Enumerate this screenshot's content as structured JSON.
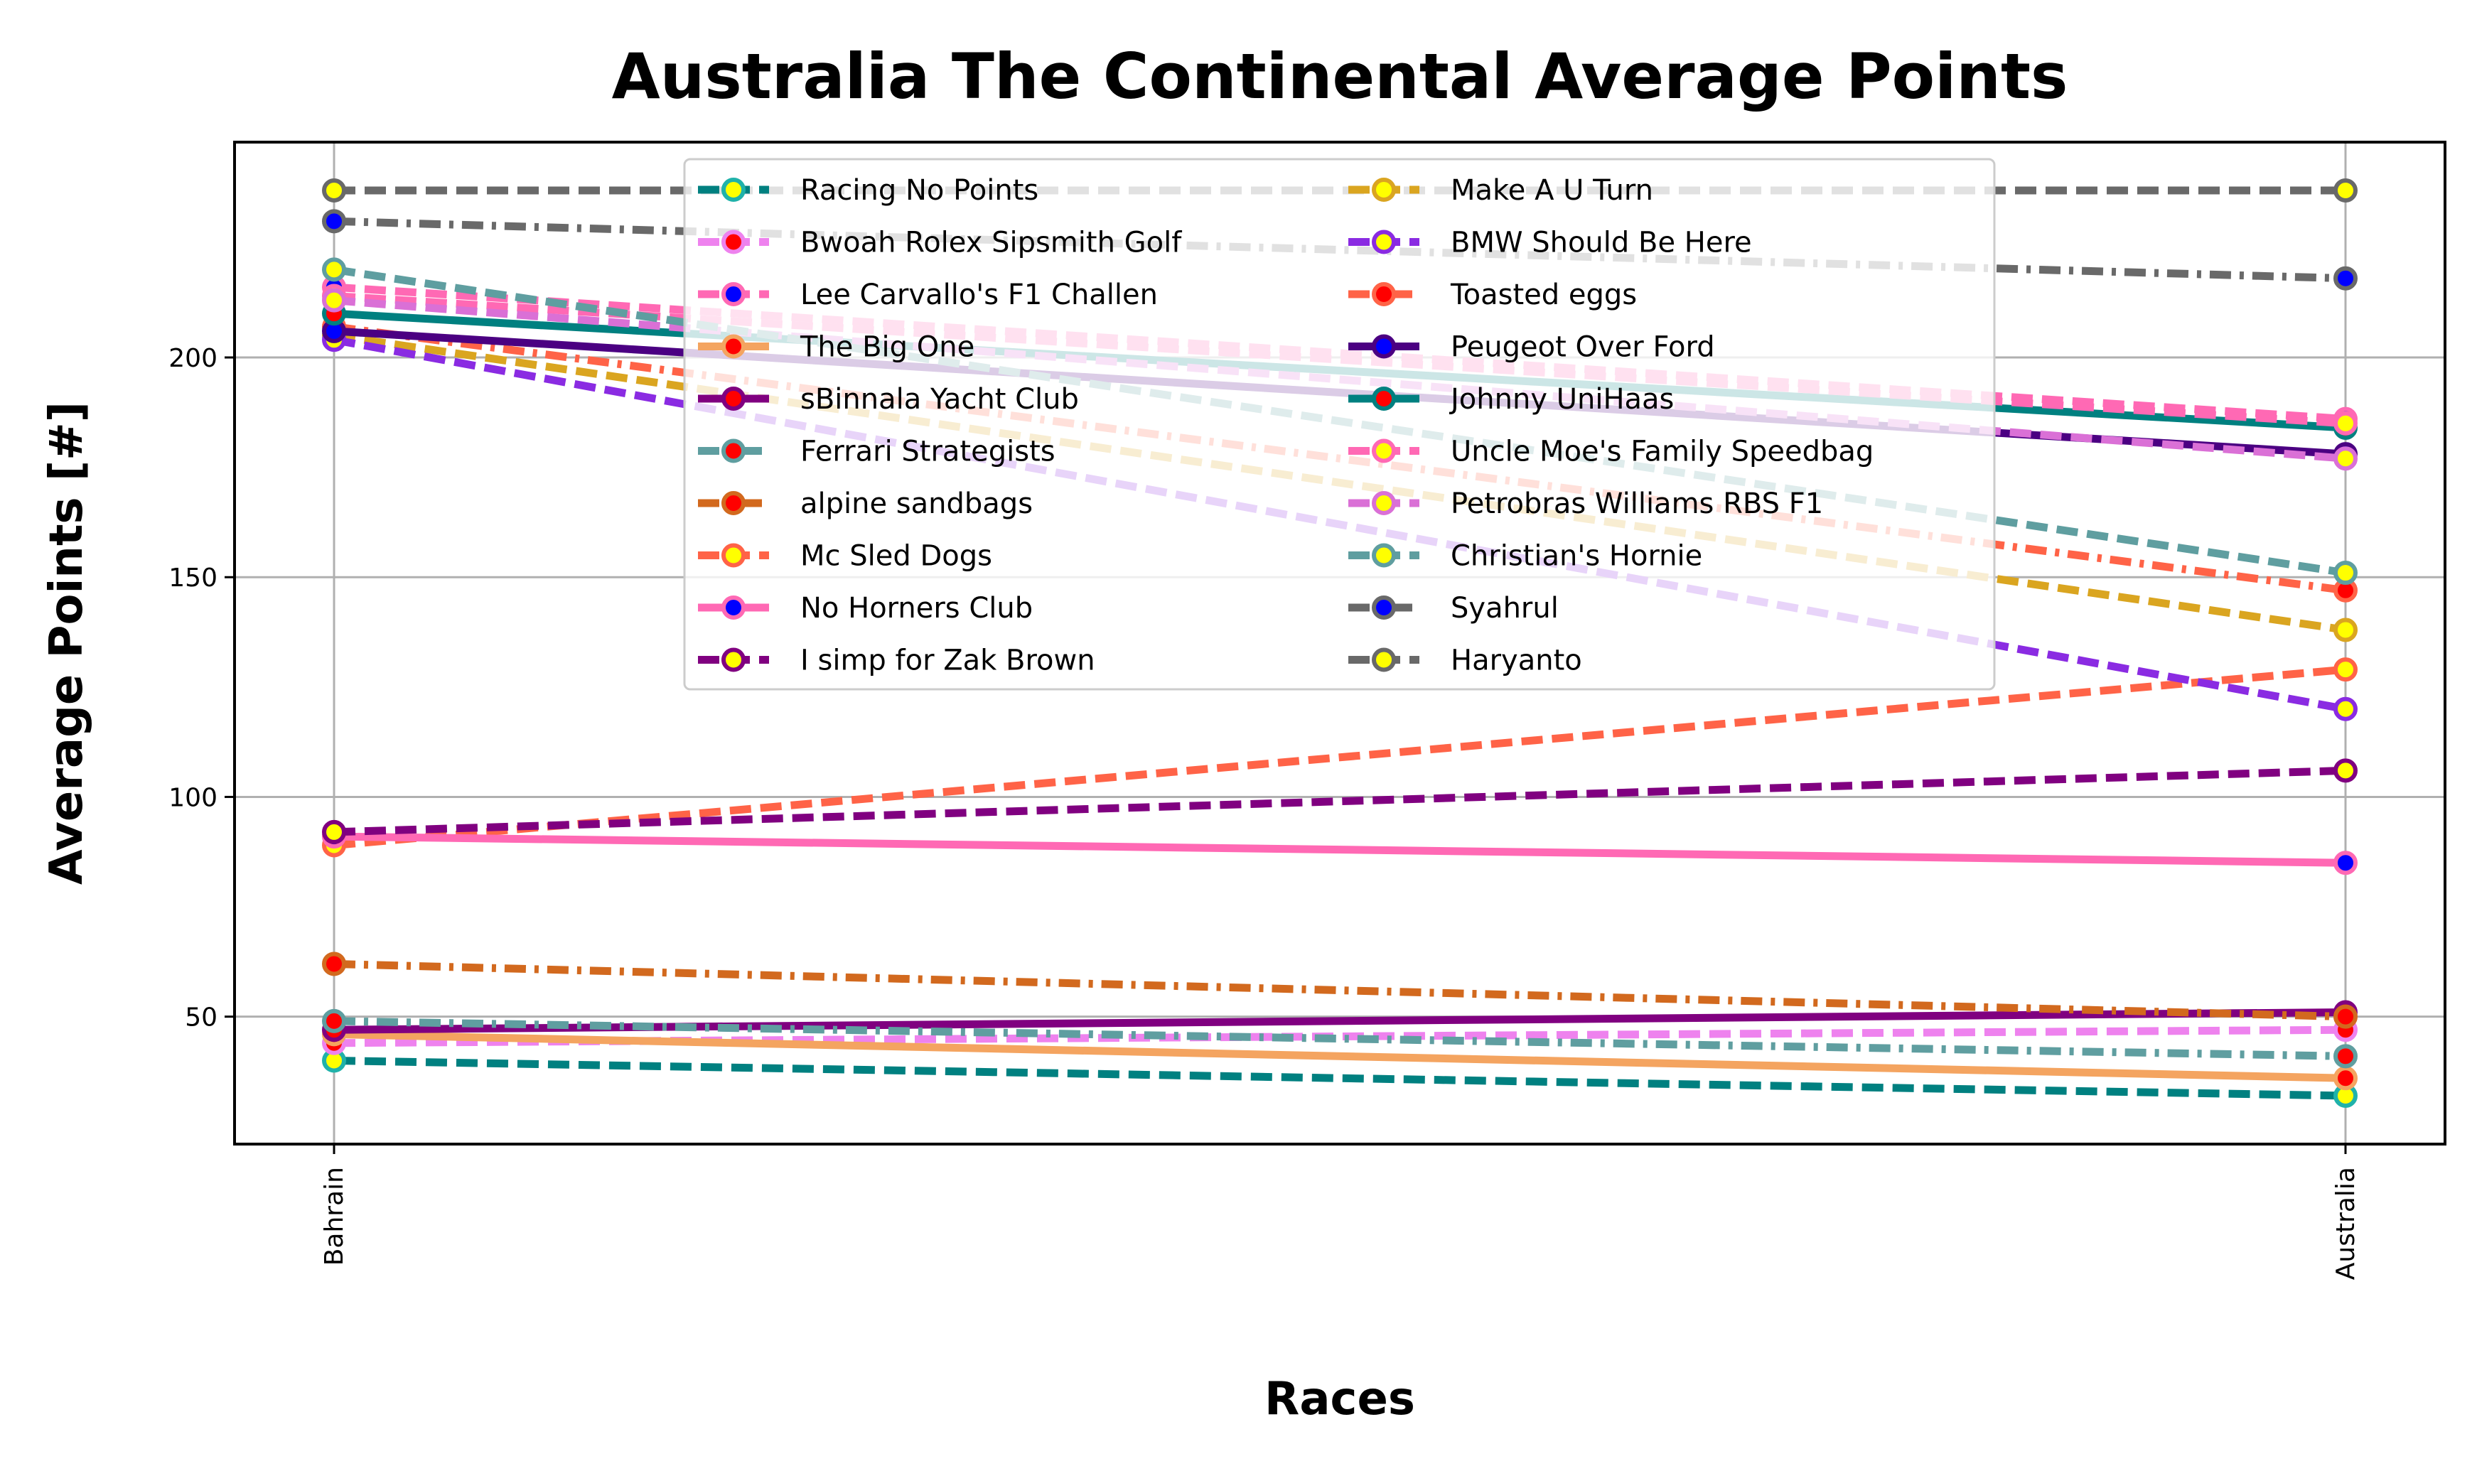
{
  "chart_data": {
    "type": "line",
    "title": "Australia The Continental Average Points",
    "xlabel": "Races",
    "ylabel": "Average Points [#]",
    "categories": [
      "Bahrain",
      "Australia"
    ],
    "ylim": [
      21,
      249
    ],
    "yticks": [
      50,
      100,
      150,
      200
    ],
    "grid": true,
    "legend_position": "top-center",
    "legend_columns": 2,
    "series": [
      {
        "name": "Racing No Points",
        "values": [
          40,
          32
        ],
        "color": "#008080",
        "dash": "dashed",
        "marker_face": "#ffff00",
        "marker_edge": "#20b2aa"
      },
      {
        "name": "Bwoah Rolex Sipsmith Golf",
        "values": [
          44,
          47
        ],
        "color": "#ee82ee",
        "dash": "dashed",
        "marker_face": "#ff0000",
        "marker_edge": "#ee82ee"
      },
      {
        "name": "Lee Carvallo's F1 Challen",
        "values": [
          216,
          186
        ],
        "color": "#ff69b4",
        "dash": "dashed",
        "marker_face": "#0000ff",
        "marker_edge": "#ff69b4"
      },
      {
        "name": "The Big One",
        "values": [
          46,
          36
        ],
        "color": "#f4a460",
        "dash": "solid",
        "marker_face": "#ff0000",
        "marker_edge": "#f4a460"
      },
      {
        "name": "sBinnala Yacht Club",
        "values": [
          47,
          51
        ],
        "color": "#800080",
        "dash": "solid",
        "marker_face": "#ff0000",
        "marker_edge": "#800080"
      },
      {
        "name": "Ferrari Strategists",
        "values": [
          49,
          41
        ],
        "color": "#5f9ea0",
        "dash": "dashdot",
        "marker_face": "#ff0000",
        "marker_edge": "#5f9ea0"
      },
      {
        "name": "alpine sandbags",
        "values": [
          62,
          50
        ],
        "color": "#d2691e",
        "dash": "dashdot",
        "marker_face": "#ff0000",
        "marker_edge": "#d2691e"
      },
      {
        "name": "Mc Sled Dogs",
        "values": [
          89,
          129
        ],
        "color": "#ff6347",
        "dash": "dashed",
        "marker_face": "#ffff00",
        "marker_edge": "#ff6347"
      },
      {
        "name": "No Horners Club",
        "values": [
          91,
          85
        ],
        "color": "#ff69b4",
        "dash": "solid",
        "marker_face": "#0000ff",
        "marker_edge": "#ff69b4"
      },
      {
        "name": "I simp for Zak Brown",
        "values": [
          92,
          106
        ],
        "color": "#800080",
        "dash": "dashed",
        "marker_face": "#ffff00",
        "marker_edge": "#800080"
      },
      {
        "name": "Make A U Turn",
        "values": [
          205,
          138
        ],
        "color": "#daa520",
        "dash": "dashed",
        "marker_face": "#ffff00",
        "marker_edge": "#daa520"
      },
      {
        "name": "BMW Should Be Here",
        "values": [
          204,
          120
        ],
        "color": "#8a2be2",
        "dash": "dashed",
        "marker_face": "#ffff00",
        "marker_edge": "#8a2be2"
      },
      {
        "name": "Toasted eggs",
        "values": [
          207,
          147
        ],
        "color": "#ff6347",
        "dash": "dashdot",
        "marker_face": "#ff0000",
        "marker_edge": "#ff6347"
      },
      {
        "name": "Peugeot Over Ford",
        "values": [
          206,
          178
        ],
        "color": "#4b0082",
        "dash": "solid",
        "marker_face": "#0000ff",
        "marker_edge": "#4b0082"
      },
      {
        "name": "Johnny UniHaas",
        "values": [
          210,
          184
        ],
        "color": "#008080",
        "dash": "solid",
        "marker_face": "#ff0000",
        "marker_edge": "#008080"
      },
      {
        "name": "Uncle Moe's Family Speedbag",
        "values": [
          214,
          185
        ],
        "color": "#ff69b4",
        "dash": "dashed",
        "marker_face": "#ffff00",
        "marker_edge": "#ff69b4"
      },
      {
        "name": "Petrobras Williams RBS F1",
        "values": [
          213,
          177
        ],
        "color": "#da70d6",
        "dash": "dashed",
        "marker_face": "#ffff00",
        "marker_edge": "#da70d6"
      },
      {
        "name": "Christian's Hornie",
        "values": [
          220,
          151
        ],
        "color": "#5f9ea0",
        "dash": "dashed",
        "marker_face": "#ffff00",
        "marker_edge": "#5f9ea0"
      },
      {
        "name": "Syahrul",
        "values": [
          231,
          218
        ],
        "color": "#696969",
        "dash": "dashdot",
        "marker_face": "#0000ff",
        "marker_edge": "#696969"
      },
      {
        "name": "Haryanto",
        "values": [
          238,
          238
        ],
        "color": "#696969",
        "dash": "dashed",
        "marker_face": "#ffff00",
        "marker_edge": "#696969"
      }
    ]
  }
}
